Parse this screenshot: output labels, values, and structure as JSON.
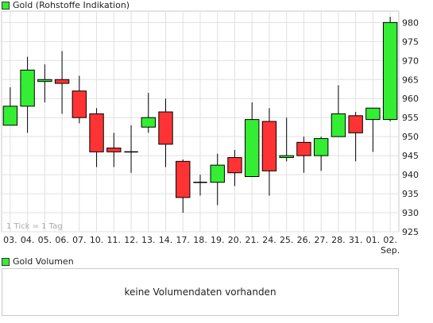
{
  "legend": {
    "price_label": "Gold (Rohstoffe Indikation)",
    "volume_label": "Gold Volumen"
  },
  "volume": {
    "empty_message": "keine Volumendaten vorhanden"
  },
  "colors": {
    "up": "#33ee33",
    "down": "#ff3333",
    "legend_swatch": "#33ee33",
    "grid": "#e0e0e0",
    "frame": "#c9c9c9"
  },
  "chart_data": {
    "type": "candlestick",
    "tick_note": "1 Tick = 1 Tag",
    "x_tick_labels": [
      "03.",
      "04.",
      "05.",
      "06.",
      "07.",
      "10.",
      "11.",
      "12.",
      "13.",
      "14.",
      "17.",
      "18.",
      "19.",
      "20.",
      "21.",
      "24.",
      "25.",
      "26.",
      "27.",
      "28.",
      "31.",
      "01.",
      "02."
    ],
    "x_sublabel": {
      "index": 22,
      "text": "Sep."
    },
    "y_ticks": [
      925,
      930,
      935,
      940,
      945,
      950,
      955,
      960,
      965,
      970,
      975,
      980
    ],
    "ylim": [
      925,
      983
    ],
    "grid": true,
    "candles": [
      {
        "open": 953,
        "high": 963,
        "low": 953,
        "close": 958
      },
      {
        "open": 958,
        "high": 971,
        "low": 951,
        "close": 967.5
      },
      {
        "open": 964.5,
        "high": 969,
        "low": 959,
        "close": 965
      },
      {
        "open": 965,
        "high": 972.5,
        "low": 956,
        "close": 964
      },
      {
        "open": 962,
        "high": 966,
        "low": 953.5,
        "close": 955
      },
      {
        "open": 956,
        "high": 957.5,
        "low": 942,
        "close": 946
      },
      {
        "open": 947,
        "high": 951,
        "low": 942,
        "close": 946
      },
      {
        "open": 946,
        "high": 953,
        "low": 940.5,
        "close": 946
      },
      {
        "open": 952.5,
        "high": 961.5,
        "low": 951,
        "close": 955
      },
      {
        "open": 956.5,
        "high": 960,
        "low": 942,
        "close": 948
      },
      {
        "open": 943.5,
        "high": 944,
        "low": 930,
        "close": 934
      },
      {
        "open": 938,
        "high": 940,
        "low": 934.5,
        "close": 938
      },
      {
        "open": 938,
        "high": 945.5,
        "low": 932,
        "close": 942.5
      },
      {
        "open": 944.5,
        "high": 946.5,
        "low": 937,
        "close": 940.5
      },
      {
        "open": 939.5,
        "high": 959,
        "low": 939.5,
        "close": 954.5
      },
      {
        "open": 954,
        "high": 957.5,
        "low": 934.5,
        "close": 941
      },
      {
        "open": 944.5,
        "high": 955,
        "low": 943.5,
        "close": 945
      },
      {
        "open": 948.5,
        "high": 950,
        "low": 940.5,
        "close": 945
      },
      {
        "open": 945,
        "high": 950,
        "low": 941,
        "close": 949.5
      },
      {
        "open": 950,
        "high": 963.5,
        "low": 950,
        "close": 956
      },
      {
        "open": 955.5,
        "high": 956.5,
        "low": 943.5,
        "close": 951
      },
      {
        "open": 954.5,
        "high": 957.5,
        "low": 946,
        "close": 957.5
      },
      {
        "open": 954.5,
        "high": 981.5,
        "low": 954,
        "close": 980
      }
    ]
  }
}
